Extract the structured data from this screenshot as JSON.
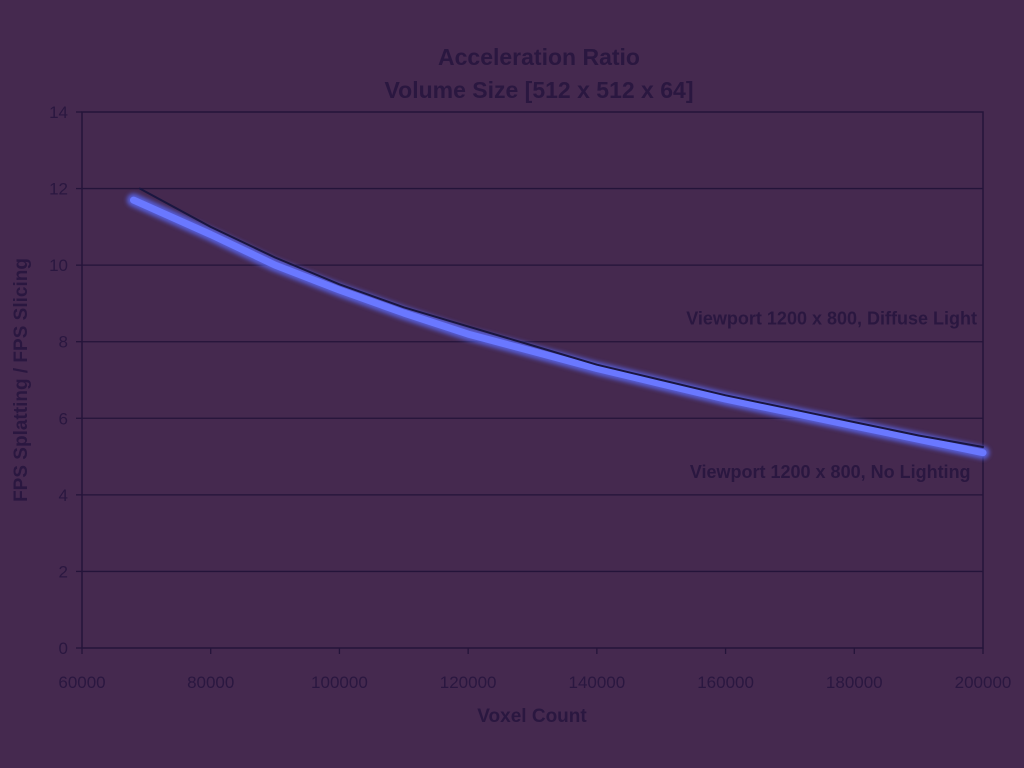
{
  "chart_data": {
    "type": "line",
    "title": "Acceleration Ratio",
    "subtitle": "Volume Size [512 x 512 x 64]",
    "xlabel": "Voxel Count",
    "ylabel": "FPS Splatting / FPS Slicing",
    "xlim": [
      60000,
      200000
    ],
    "ylim": [
      0,
      14
    ],
    "x_ticks": [
      60000,
      80000,
      100000,
      120000,
      140000,
      160000,
      180000,
      200000
    ],
    "x_tick_labels": [
      "60000",
      "80000",
      "100000",
      "120000",
      "140000",
      "160000",
      "180000",
      "200000"
    ],
    "y_ticks": [
      0,
      2,
      4,
      6,
      8,
      10,
      12,
      14
    ],
    "y_tick_labels": [
      "0",
      "2",
      "4",
      "6",
      "8",
      "10",
      "12",
      "14"
    ],
    "grid": "horizontal",
    "series": [
      {
        "name": "Viewport 1200 x 800, Diffuse Light",
        "color": "#1a1640",
        "style": "thin",
        "x": [
          69000,
          80000,
          90000,
          100000,
          110000,
          120000,
          130000,
          140000,
          150000,
          160000,
          170000,
          180000,
          190000,
          200000
        ],
        "values": [
          12.0,
          11.0,
          10.2,
          9.5,
          8.9,
          8.4,
          7.9,
          7.4,
          7.0,
          6.6,
          6.25,
          5.9,
          5.55,
          5.25
        ]
      },
      {
        "name": "Viewport 1200 x 800, No Lighting",
        "color": "#5a66ee",
        "style": "thick",
        "x": [
          68000,
          80000,
          90000,
          100000,
          110000,
          120000,
          130000,
          140000,
          150000,
          160000,
          170000,
          180000,
          190000,
          200000
        ],
        "values": [
          11.7,
          10.8,
          10.0,
          9.35,
          8.75,
          8.2,
          7.75,
          7.3,
          6.9,
          6.5,
          6.15,
          5.8,
          5.45,
          5.1
        ]
      }
    ],
    "annotations": [
      {
        "text": "Viewport 1200 x 800, Diffuse Light",
        "x": 200000,
        "y": 8.6,
        "anchor": "end"
      },
      {
        "text": "Viewport 1200 x 800, No Lighting",
        "x": 199000,
        "y": 4.6,
        "anchor": "end"
      }
    ]
  }
}
